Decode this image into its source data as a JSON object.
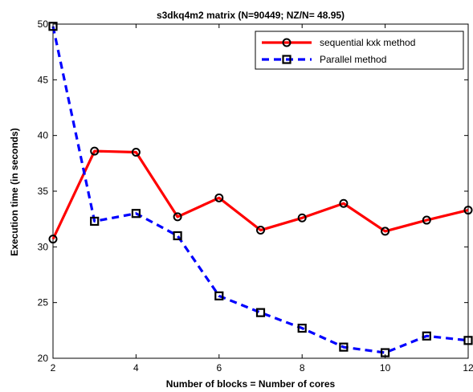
{
  "chart_data": {
    "type": "line",
    "title": "s3dkq4m2 matrix (N=90449; NZ/N= 48.95)",
    "xlabel": "Number of blocks = Number of cores",
    "ylabel": "Execution time (in seconds)",
    "xlim": [
      2,
      12
    ],
    "ylim": [
      20,
      50
    ],
    "xticks": [
      "2",
      "4",
      "6",
      "8",
      "10",
      "12"
    ],
    "yticks": [
      "20",
      "25",
      "30",
      "35",
      "40",
      "45",
      "50"
    ],
    "grid": false,
    "legend_position": "top-right",
    "x": [
      2,
      3,
      4,
      5,
      6,
      7,
      8,
      9,
      10,
      11,
      12
    ],
    "series": [
      {
        "name": "sequential kxk method",
        "color": "#ff0000",
        "style": "solid",
        "marker": "circle",
        "values": [
          30.7,
          38.6,
          38.5,
          32.7,
          34.4,
          31.5,
          32.6,
          33.9,
          31.4,
          32.4,
          33.3
        ]
      },
      {
        "name": "Parallel method",
        "color": "#0000ff",
        "style": "dashed",
        "marker": "square",
        "values": [
          49.8,
          32.3,
          33.0,
          31.0,
          25.6,
          24.1,
          22.7,
          21.0,
          20.5,
          22.0,
          21.6
        ]
      }
    ]
  }
}
